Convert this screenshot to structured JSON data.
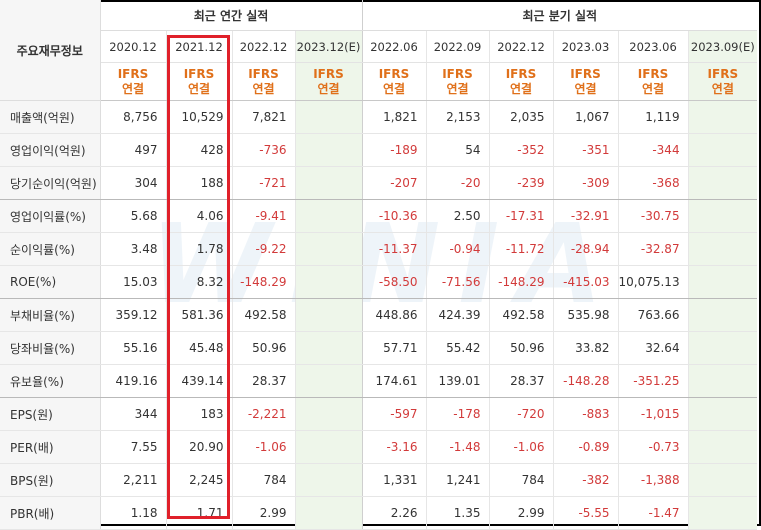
{
  "corner_label": "주요재무정보",
  "groups": {
    "annual": "최근 연간 실적",
    "quarterly": "최근 분기 실적"
  },
  "periods": [
    "2020.12",
    "2021.12",
    "2022.12",
    "2023.12(E)",
    "2022.06",
    "2022.09",
    "2022.12",
    "2023.03",
    "2023.06",
    "2023.09(E)"
  ],
  "accounting": [
    "IFRS",
    "연결"
  ],
  "watermark": "WINIA",
  "rows": [
    {
      "label": "매출액(억원)",
      "values": [
        "8,756",
        "10,529",
        "7,821",
        "",
        "1,821",
        "2,153",
        "2,035",
        "1,067",
        "1,119",
        ""
      ]
    },
    {
      "label": "영업이익(억원)",
      "values": [
        "497",
        "428",
        "-736",
        "",
        "-189",
        "54",
        "-352",
        "-351",
        "-344",
        ""
      ]
    },
    {
      "label": "당기순이익(억원)",
      "values": [
        "304",
        "188",
        "-721",
        "",
        "-207",
        "-20",
        "-239",
        "-309",
        "-368",
        ""
      ]
    },
    {
      "label": "영업이익률(%)",
      "values": [
        "5.68",
        "4.06",
        "-9.41",
        "",
        "-10.36",
        "2.50",
        "-17.31",
        "-32.91",
        "-30.75",
        ""
      ]
    },
    {
      "label": "순이익률(%)",
      "values": [
        "3.48",
        "1.78",
        "-9.22",
        "",
        "-11.37",
        "-0.94",
        "-11.72",
        "-28.94",
        "-32.87",
        ""
      ]
    },
    {
      "label": "ROE(%)",
      "values": [
        "15.03",
        "8.32",
        "-148.29",
        "",
        "-58.50",
        "-71.56",
        "-148.29",
        "-415.03",
        "10,075.13",
        ""
      ]
    },
    {
      "label": "부채비율(%)",
      "values": [
        "359.12",
        "581.36",
        "492.58",
        "",
        "448.86",
        "424.39",
        "492.58",
        "535.98",
        "763.66",
        ""
      ]
    },
    {
      "label": "당좌비율(%)",
      "values": [
        "55.16",
        "45.48",
        "50.96",
        "",
        "57.71",
        "55.42",
        "50.96",
        "33.82",
        "32.64",
        ""
      ]
    },
    {
      "label": "유보율(%)",
      "values": [
        "419.16",
        "439.14",
        "28.37",
        "",
        "174.61",
        "139.01",
        "28.37",
        "-148.28",
        "-351.25",
        ""
      ]
    },
    {
      "label": "EPS(원)",
      "values": [
        "344",
        "183",
        "-2,221",
        "",
        "-597",
        "-178",
        "-720",
        "-883",
        "-1,015",
        ""
      ]
    },
    {
      "label": "PER(배)",
      "values": [
        "7.55",
        "20.90",
        "-1.06",
        "",
        "-3.16",
        "-1.48",
        "-1.06",
        "-0.89",
        "-0.73",
        ""
      ]
    },
    {
      "label": "BPS(원)",
      "values": [
        "2,211",
        "2,245",
        "784",
        "",
        "1,331",
        "1,241",
        "784",
        "-382",
        "-1,388",
        ""
      ]
    },
    {
      "label": "PBR(배)",
      "values": [
        "1.18",
        "1.71",
        "2.99",
        "",
        "2.26",
        "1.35",
        "2.99",
        "-5.55",
        "-1.47",
        ""
      ]
    }
  ],
  "highlight_column": "2021.12",
  "colors": {
    "negative": "#d23a3a",
    "ifrs_text": "#e0701a",
    "highlight_box": "#e0202a",
    "estimate_bg": "#eef6ea"
  }
}
